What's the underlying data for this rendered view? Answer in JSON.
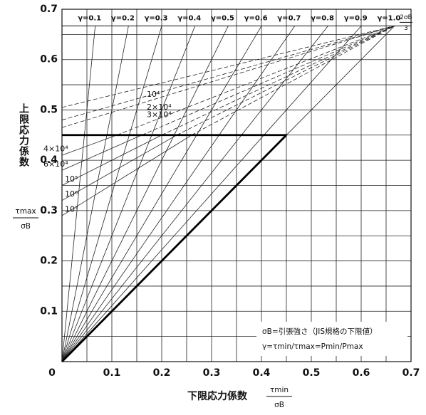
{
  "chart_data": {
    "type": "fatigue-diagram",
    "xlabel": "下限応力係数",
    "ylabel": "上限応力係数",
    "x_fraction": {
      "numerator": "τmin",
      "denominator": "σB"
    },
    "y_fraction": {
      "numerator": "τmax",
      "denominator": "σB"
    },
    "xlim": [
      0,
      0.7
    ],
    "ylim": [
      0,
      0.7
    ],
    "xticks": [
      0,
      0.1,
      0.2,
      0.3,
      0.4,
      0.5,
      0.6,
      0.7
    ],
    "yticks": [
      0,
      0.1,
      0.2,
      0.3,
      0.4,
      0.5,
      0.6,
      0.7
    ],
    "minor_grid": [
      0.05,
      0.15,
      0.25,
      0.35,
      0.45,
      0.55,
      0.65
    ],
    "limit_line": {
      "value": 0.667,
      "label_numerator": "2σB",
      "label_denominator": "3"
    },
    "ratio_lines": {
      "labels": [
        "γ=0.1",
        "γ=0.2",
        "γ=0.3",
        "γ=0.4",
        "γ=0.5",
        "γ=0.6",
        "γ=0.7",
        "γ=0.8",
        "γ=0.9",
        "γ=1.0"
      ],
      "values": [
        0.1,
        0.2,
        0.3,
        0.4,
        0.5,
        0.6,
        0.7,
        0.8,
        0.9,
        1.0
      ]
    },
    "design_limit": 0.45,
    "series": [
      {
        "name": "10⁴",
        "style": "dashed",
        "x": [
          0,
          0.667
        ],
        "values": [
          0.505,
          0.667
        ]
      },
      {
        "name": "2×10⁴",
        "style": "dashed",
        "x": [
          0,
          0.667
        ],
        "values": [
          0.48,
          0.667
        ]
      },
      {
        "name": "3×10⁴",
        "style": "dashed",
        "x": [
          0,
          0.667
        ],
        "values": [
          0.465,
          0.667
        ]
      },
      {
        "name": "4×10⁴",
        "style": "solid-dashed",
        "x": [
          0,
          0.11,
          0.667
        ],
        "values": [
          0.41,
          0.45,
          0.667
        ]
      },
      {
        "name": "6×10⁴",
        "style": "solid-dashed",
        "x": [
          0,
          0.16,
          0.667
        ],
        "values": [
          0.38,
          0.45,
          0.667
        ]
      },
      {
        "name": "10⁵",
        "style": "solid-dashed",
        "x": [
          0,
          0.2,
          0.667
        ],
        "values": [
          0.35,
          0.45,
          0.667
        ]
      },
      {
        "name": "10⁶",
        "style": "solid-dashed",
        "x": [
          0,
          0.23,
          0.667
        ],
        "values": [
          0.32,
          0.45,
          0.667
        ]
      },
      {
        "name": "10⁷",
        "style": "solid-dashed",
        "x": [
          0,
          0.26,
          0.667
        ],
        "values": [
          0.29,
          0.45,
          0.667
        ]
      }
    ],
    "notes": [
      "σB=引張強さ（JIS規格の下限値）",
      "γ=τmin/τmax=Pmin/Pmax"
    ]
  }
}
